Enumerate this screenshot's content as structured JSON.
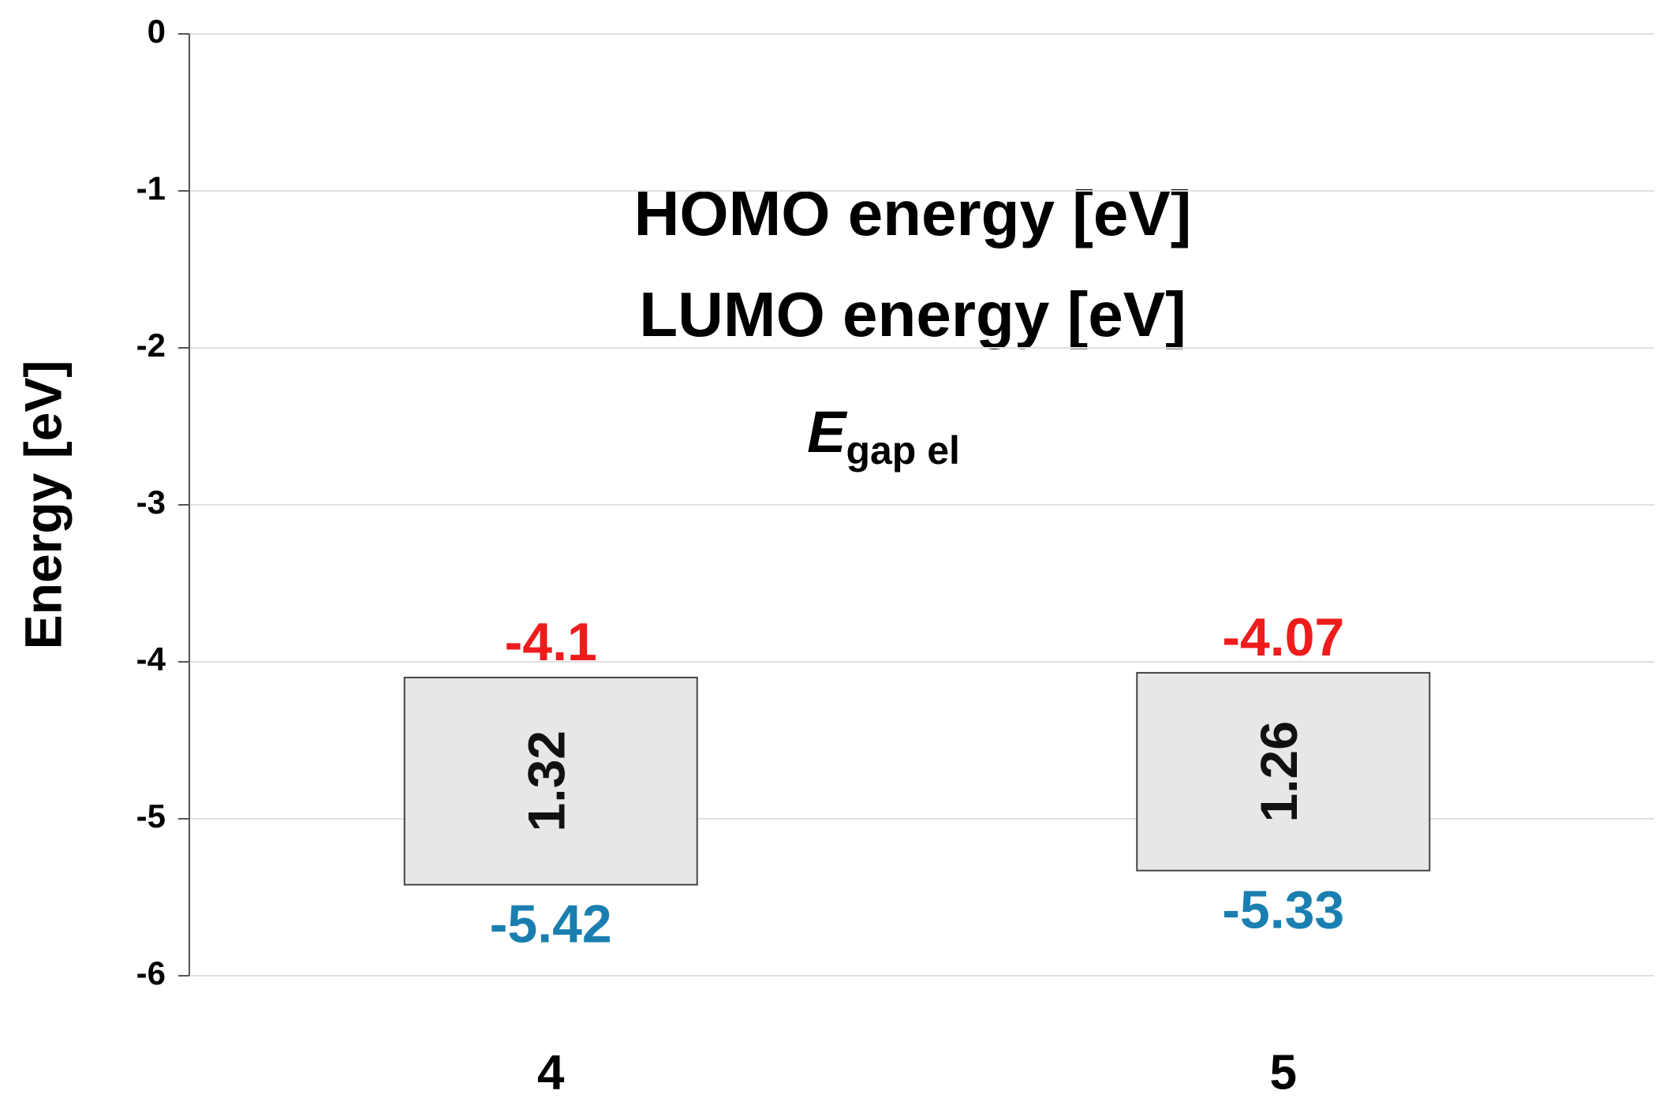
{
  "chart_data": {
    "type": "floating-bar",
    "y_label": "Energy [eV]",
    "categories": [
      "4",
      "5"
    ],
    "series": [
      {
        "name": "HOMO energy [eV]",
        "color": "#1a7fb0",
        "values": [
          -5.42,
          -5.33
        ]
      },
      {
        "name": "LUMO energy [eV]",
        "color": "#ee1c1c",
        "values": [
          -4.1,
          -4.07
        ]
      }
    ],
    "gap": {
      "symbol": "E",
      "subscript": "gap el",
      "color": "#e8e6e6",
      "values": [
        1.32,
        1.26
      ]
    },
    "ylim": [
      -6,
      0
    ],
    "yticks": [
      0,
      -1,
      -2,
      -3,
      -4,
      -5,
      -6
    ],
    "grid": true
  }
}
